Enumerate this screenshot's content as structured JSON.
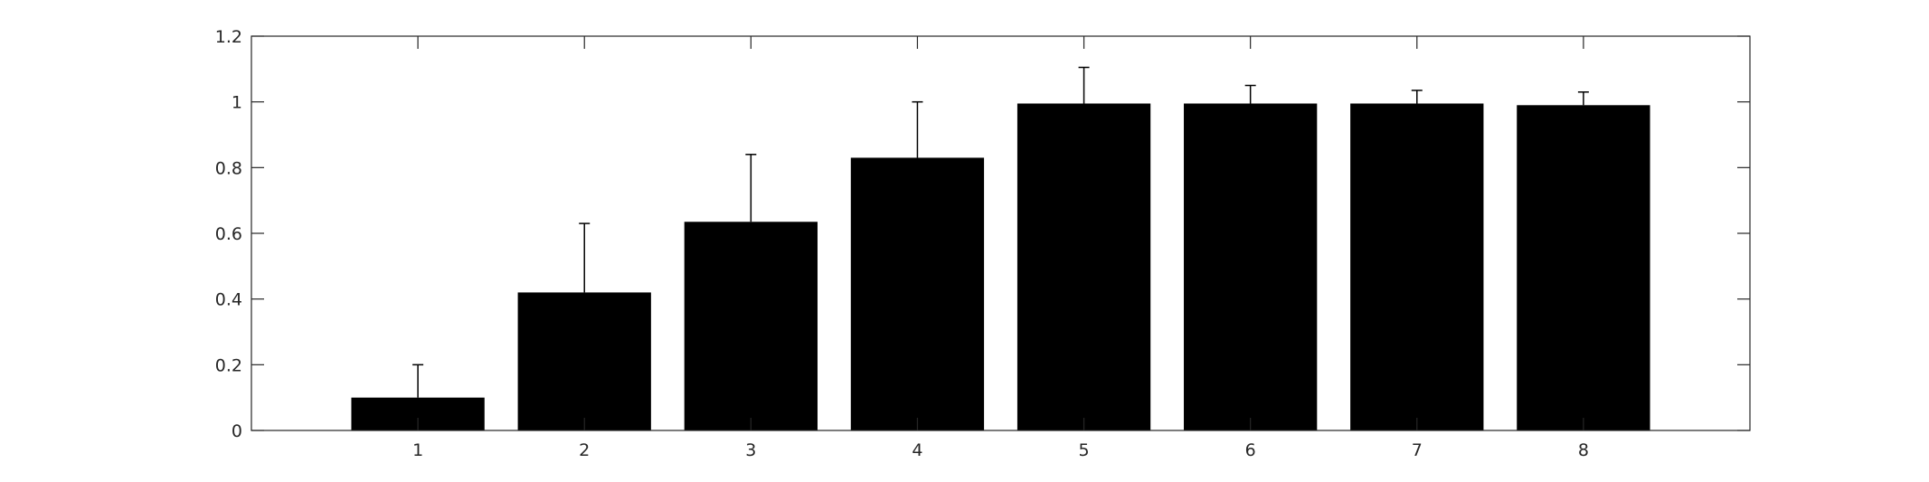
{
  "chart_data": {
    "type": "bar",
    "categories": [
      "1",
      "2",
      "3",
      "4",
      "5",
      "6",
      "7",
      "8"
    ],
    "series": [
      {
        "values": [
          0.1,
          0.42,
          0.635,
          0.83,
          0.995,
          0.995,
          0.995,
          0.99
        ],
        "error_upper": [
          0.1,
          0.21,
          0.205,
          0.17,
          0.11,
          0.055,
          0.04,
          0.04
        ]
      }
    ],
    "title": "",
    "xlabel": "",
    "ylabel": "",
    "ylim": [
      0,
      1.2
    ],
    "xlim": [
      0,
      9
    ],
    "yticks": [
      0,
      0.2,
      0.4,
      0.6,
      0.8,
      1,
      1.2
    ],
    "ytick_labels": [
      "0",
      "0.2",
      "0.4",
      "0.6",
      "0.8",
      "1",
      "1.2"
    ],
    "xticks": [
      1,
      2,
      3,
      4,
      5,
      6,
      7,
      8
    ],
    "xtick_labels": [
      "1",
      "2",
      "3",
      "4",
      "5",
      "6",
      "7",
      "8"
    ],
    "grid": false,
    "bar_color": "#000000",
    "axis_color": "#262626"
  }
}
